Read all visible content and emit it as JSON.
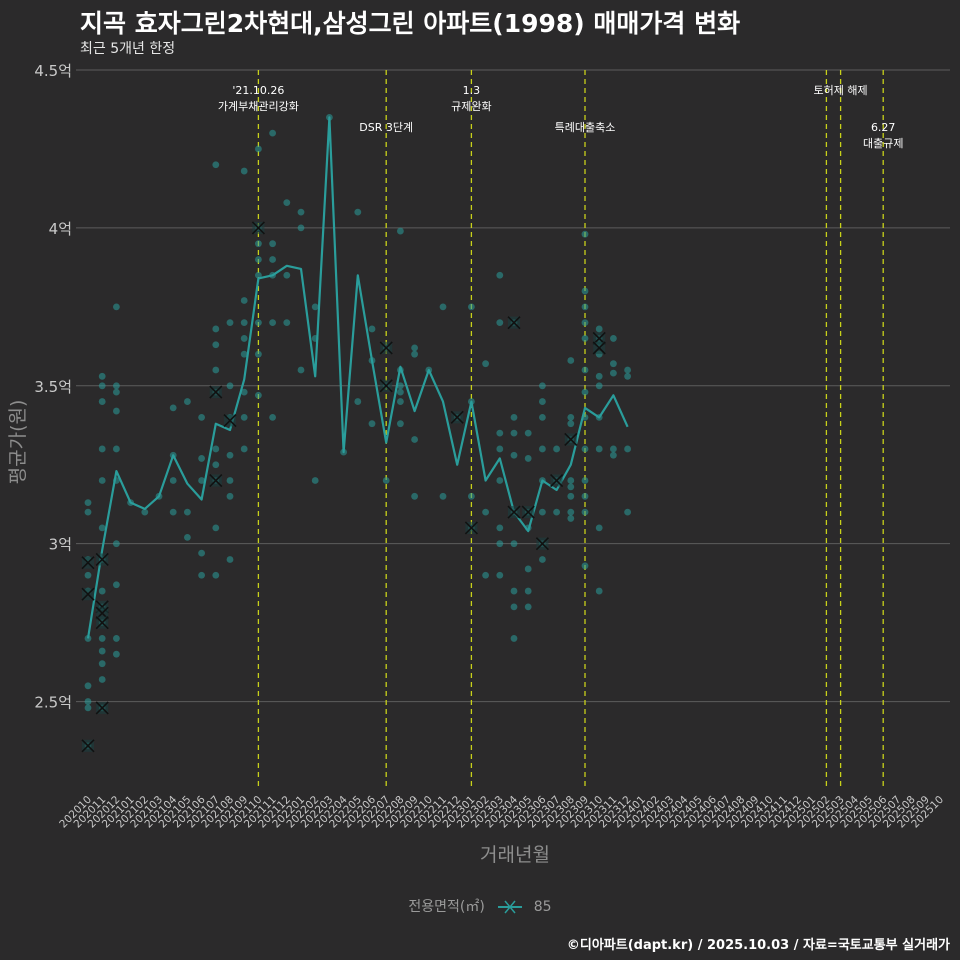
{
  "header": {
    "title": "지곡 효자그린2차현대,삼성그린 아파트(1998) 매매가격 변화",
    "subtitle": "최근 5개년 한정"
  },
  "caption": "©디아파트(dapt.kr) / 2025.10.03 / 자료=국토교통부 실거래가",
  "legend": {
    "title": "전용면적(㎡)",
    "label": "85"
  },
  "colors": {
    "series": "#2a9d9b",
    "vline": "#c8d11a",
    "grid": "#5c5c5c",
    "background": "#2b2a2b"
  },
  "chart_data": {
    "type": "line",
    "title": "지곡 효자그린2차현대,삼성그린 아파트(1998) 매매가격 변화",
    "subtitle": "최근 5개년 한정",
    "xlabel": "거래년월",
    "ylabel": "평균가(원)",
    "ylim": [
      2.22,
      4.5
    ],
    "yticks": [
      {
        "value": 2.5,
        "label": "2.5억"
      },
      {
        "value": 3.0,
        "label": "3억"
      },
      {
        "value": 3.5,
        "label": "3.5억"
      },
      {
        "value": 4.0,
        "label": "4억"
      },
      {
        "value": 4.5,
        "label": "4.5억"
      }
    ],
    "grid": true,
    "legend_position": "bottom",
    "x_categories": [
      "202010",
      "202011",
      "202012",
      "202101",
      "202102",
      "202103",
      "202104",
      "202105",
      "202106",
      "202107",
      "202108",
      "202109",
      "202110",
      "202111",
      "202112",
      "202201",
      "202202",
      "202203",
      "202204",
      "202205",
      "202206",
      "202207",
      "202208",
      "202209",
      "202210",
      "202211",
      "202212",
      "202301",
      "202302",
      "202303",
      "202304",
      "202305",
      "202306",
      "202307",
      "202308",
      "202309",
      "202310",
      "202311",
      "202312",
      "202401",
      "202402",
      "202403",
      "202404",
      "202405",
      "202406",
      "202407",
      "202408",
      "202409",
      "202410",
      "202411",
      "202412",
      "202501",
      "202502",
      "202503",
      "202504",
      "202505",
      "202506",
      "202507",
      "202508",
      "202509",
      "202510"
    ],
    "series": [
      {
        "name": "85",
        "x": [
          "202010",
          "202011",
          "202012",
          "202101",
          "202102",
          "202103",
          "202104",
          "202105",
          "202106",
          "202107",
          "202108",
          "202109",
          "202110",
          "202111",
          "202112",
          "202201",
          "202202",
          "202203",
          "202204",
          "202205",
          "202206",
          "202207",
          "202208",
          "202209",
          "202210",
          "202211",
          "202212",
          "202301",
          "202302",
          "202303",
          "202304",
          "202305",
          "202306",
          "202307",
          "202308",
          "202309",
          "202310",
          "202311",
          "202312"
        ],
        "values": [
          2.7,
          2.98,
          3.23,
          3.13,
          3.11,
          3.15,
          3.28,
          3.19,
          3.14,
          3.38,
          3.36,
          3.52,
          3.84,
          3.85,
          3.88,
          3.87,
          3.53,
          4.35,
          3.29,
          3.85,
          3.58,
          3.32,
          3.56,
          3.42,
          3.55,
          3.45,
          3.25,
          3.45,
          3.2,
          3.27,
          3.1,
          3.04,
          3.2,
          3.17,
          3.25,
          3.43,
          3.4,
          3.47,
          3.37
        ]
      }
    ],
    "scatter_points": [
      [
        "202010",
        2.7
      ],
      [
        "202010",
        2.9
      ],
      [
        "202010",
        2.95
      ],
      [
        "202010",
        3.1
      ],
      [
        "202010",
        3.13
      ],
      [
        "202010",
        2.85
      ],
      [
        "202010",
        2.55
      ],
      [
        "202010",
        2.5
      ],
      [
        "202010",
        2.48
      ],
      [
        "202010",
        2.36
      ],
      [
        "202011",
        2.62
      ],
      [
        "202011",
        2.7
      ],
      [
        "202011",
        2.8
      ],
      [
        "202011",
        2.85
      ],
      [
        "202011",
        2.95
      ],
      [
        "202011",
        3.05
      ],
      [
        "202011",
        3.2
      ],
      [
        "202011",
        3.3
      ],
      [
        "202011",
        3.45
      ],
      [
        "202011",
        3.5
      ],
      [
        "202011",
        3.53
      ],
      [
        "202011",
        2.57
      ],
      [
        "202011",
        2.48
      ],
      [
        "202011",
        2.75
      ],
      [
        "202011",
        2.66
      ],
      [
        "202012",
        2.65
      ],
      [
        "202012",
        2.7
      ],
      [
        "202012",
        2.87
      ],
      [
        "202012",
        3.0
      ],
      [
        "202012",
        3.2
      ],
      [
        "202012",
        3.3
      ],
      [
        "202012",
        3.42
      ],
      [
        "202012",
        3.48
      ],
      [
        "202012",
        3.5
      ],
      [
        "202012",
        3.75
      ],
      [
        "202101",
        3.13
      ],
      [
        "202102",
        3.1
      ],
      [
        "202103",
        3.15
      ],
      [
        "202104",
        3.1
      ],
      [
        "202104",
        3.2
      ],
      [
        "202104",
        3.28
      ],
      [
        "202104",
        3.43
      ],
      [
        "202105",
        3.02
      ],
      [
        "202105",
        3.1
      ],
      [
        "202105",
        3.45
      ],
      [
        "202106",
        2.9
      ],
      [
        "202106",
        2.97
      ],
      [
        "202106",
        3.2
      ],
      [
        "202106",
        3.27
      ],
      [
        "202106",
        3.4
      ],
      [
        "202107",
        2.9
      ],
      [
        "202107",
        3.05
      ],
      [
        "202107",
        3.2
      ],
      [
        "202107",
        3.25
      ],
      [
        "202107",
        3.3
      ],
      [
        "202107",
        3.48
      ],
      [
        "202107",
        3.55
      ],
      [
        "202107",
        3.63
      ],
      [
        "202107",
        3.68
      ],
      [
        "202107",
        4.2
      ],
      [
        "202108",
        2.95
      ],
      [
        "202108",
        3.15
      ],
      [
        "202108",
        3.2
      ],
      [
        "202108",
        3.28
      ],
      [
        "202108",
        3.4
      ],
      [
        "202108",
        3.5
      ],
      [
        "202108",
        3.7
      ],
      [
        "202109",
        3.3
      ],
      [
        "202109",
        3.4
      ],
      [
        "202109",
        3.48
      ],
      [
        "202109",
        3.6
      ],
      [
        "202109",
        3.65
      ],
      [
        "202109",
        3.7
      ],
      [
        "202109",
        3.77
      ],
      [
        "202109",
        4.18
      ],
      [
        "202110",
        3.47
      ],
      [
        "202110",
        3.6
      ],
      [
        "202110",
        3.7
      ],
      [
        "202110",
        3.85
      ],
      [
        "202110",
        3.9
      ],
      [
        "202110",
        3.95
      ],
      [
        "202110",
        4.0
      ],
      [
        "202110",
        4.25
      ],
      [
        "202111",
        3.4
      ],
      [
        "202111",
        3.7
      ],
      [
        "202111",
        3.85
      ],
      [
        "202111",
        3.9
      ],
      [
        "202111",
        3.95
      ],
      [
        "202111",
        4.3
      ],
      [
        "202112",
        3.7
      ],
      [
        "202112",
        3.85
      ],
      [
        "202112",
        4.08
      ],
      [
        "202201",
        3.55
      ],
      [
        "202201",
        4.0
      ],
      [
        "202201",
        4.05
      ],
      [
        "202202",
        3.2
      ],
      [
        "202202",
        3.65
      ],
      [
        "202202",
        3.75
      ],
      [
        "202203",
        4.35
      ],
      [
        "202204",
        3.29
      ],
      [
        "202205",
        3.45
      ],
      [
        "202205",
        4.05
      ],
      [
        "202206",
        3.38
      ],
      [
        "202206",
        3.58
      ],
      [
        "202206",
        3.68
      ],
      [
        "202207",
        3.2
      ],
      [
        "202207",
        3.5
      ],
      [
        "202207",
        3.62
      ],
      [
        "202208",
        3.38
      ],
      [
        "202208",
        3.45
      ],
      [
        "202208",
        3.48
      ],
      [
        "202208",
        3.5
      ],
      [
        "202208",
        3.55
      ],
      [
        "202208",
        3.99
      ],
      [
        "202209",
        3.15
      ],
      [
        "202209",
        3.33
      ],
      [
        "202209",
        3.6
      ],
      [
        "202209",
        3.62
      ],
      [
        "202210",
        3.55
      ],
      [
        "202211",
        3.15
      ],
      [
        "202211",
        3.75
      ],
      [
        "202212",
        3.4
      ],
      [
        "202301",
        3.05
      ],
      [
        "202301",
        3.15
      ],
      [
        "202301",
        3.45
      ],
      [
        "202301",
        3.75
      ],
      [
        "202302",
        2.9
      ],
      [
        "202302",
        3.1
      ],
      [
        "202302",
        3.57
      ],
      [
        "202303",
        2.9
      ],
      [
        "202303",
        3.0
      ],
      [
        "202303",
        3.05
      ],
      [
        "202303",
        3.2
      ],
      [
        "202303",
        3.3
      ],
      [
        "202303",
        3.35
      ],
      [
        "202303",
        3.7
      ],
      [
        "202303",
        3.85
      ],
      [
        "202304",
        2.7
      ],
      [
        "202304",
        2.8
      ],
      [
        "202304",
        2.85
      ],
      [
        "202304",
        3.0
      ],
      [
        "202304",
        3.1
      ],
      [
        "202304",
        3.28
      ],
      [
        "202304",
        3.35
      ],
      [
        "202304",
        3.4
      ],
      [
        "202304",
        3.7
      ],
      [
        "202305",
        2.8
      ],
      [
        "202305",
        2.85
      ],
      [
        "202305",
        2.92
      ],
      [
        "202305",
        3.05
      ],
      [
        "202305",
        3.1
      ],
      [
        "202305",
        3.27
      ],
      [
        "202305",
        3.35
      ],
      [
        "202306",
        2.95
      ],
      [
        "202306",
        3.0
      ],
      [
        "202306",
        3.1
      ],
      [
        "202306",
        3.2
      ],
      [
        "202306",
        3.3
      ],
      [
        "202306",
        3.4
      ],
      [
        "202306",
        3.45
      ],
      [
        "202306",
        3.5
      ],
      [
        "202307",
        3.1
      ],
      [
        "202307",
        3.2
      ],
      [
        "202307",
        3.3
      ],
      [
        "202308",
        3.08
      ],
      [
        "202308",
        3.1
      ],
      [
        "202308",
        3.15
      ],
      [
        "202308",
        3.18
      ],
      [
        "202308",
        3.2
      ],
      [
        "202308",
        3.33
      ],
      [
        "202308",
        3.38
      ],
      [
        "202308",
        3.4
      ],
      [
        "202308",
        3.58
      ],
      [
        "202309",
        2.93
      ],
      [
        "202309",
        3.1
      ],
      [
        "202309",
        3.15
      ],
      [
        "202309",
        3.2
      ],
      [
        "202309",
        3.3
      ],
      [
        "202309",
        3.4
      ],
      [
        "202309",
        3.48
      ],
      [
        "202309",
        3.55
      ],
      [
        "202309",
        3.65
      ],
      [
        "202309",
        3.7
      ],
      [
        "202309",
        3.75
      ],
      [
        "202309",
        3.8
      ],
      [
        "202309",
        3.98
      ],
      [
        "202310",
        2.85
      ],
      [
        "202310",
        3.05
      ],
      [
        "202310",
        3.3
      ],
      [
        "202310",
        3.4
      ],
      [
        "202310",
        3.5
      ],
      [
        "202310",
        3.53
      ],
      [
        "202310",
        3.6
      ],
      [
        "202310",
        3.63
      ],
      [
        "202310",
        3.65
      ],
      [
        "202310",
        3.68
      ],
      [
        "202311",
        3.28
      ],
      [
        "202311",
        3.3
      ],
      [
        "202311",
        3.54
      ],
      [
        "202311",
        3.57
      ],
      [
        "202311",
        3.65
      ],
      [
        "202312",
        3.1
      ],
      [
        "202312",
        3.3
      ],
      [
        "202312",
        3.53
      ],
      [
        "202312",
        3.55
      ]
    ],
    "x_markers": [
      [
        "202010",
        2.94
      ],
      [
        "202010",
        2.84
      ],
      [
        "202010",
        2.36
      ],
      [
        "202011",
        2.95
      ],
      [
        "202011",
        2.8
      ],
      [
        "202011",
        2.78
      ],
      [
        "202011",
        2.75
      ],
      [
        "202011",
        2.48
      ],
      [
        "202107",
        3.48
      ],
      [
        "202107",
        3.2
      ],
      [
        "202108",
        3.39
      ],
      [
        "202110",
        4.0
      ],
      [
        "202207",
        3.62
      ],
      [
        "202207",
        3.5
      ],
      [
        "202212",
        3.4
      ],
      [
        "202301",
        3.05
      ],
      [
        "202304",
        3.7
      ],
      [
        "202304",
        3.1
      ],
      [
        "202305",
        3.1
      ],
      [
        "202306",
        3.0
      ],
      [
        "202307",
        3.2
      ],
      [
        "202308",
        3.33
      ],
      [
        "202310",
        3.65
      ],
      [
        "202310",
        3.62
      ]
    ],
    "annotations": [
      {
        "x": "202110",
        "lines": [
          "'21.10.26",
          "가계부채관리강화"
        ],
        "level": 0
      },
      {
        "x": "202207",
        "lines": [
          "DSR 3단계"
        ],
        "level": 1
      },
      {
        "x": "202301",
        "lines": [
          "1.3",
          "규제완화"
        ],
        "level": 0
      },
      {
        "x": "202309",
        "lines": [
          "특례대출축소"
        ],
        "level": 1
      },
      {
        "x": "202502",
        "lines": [],
        "level": 0
      },
      {
        "x": "202503",
        "lines": [
          "토허제 해제"
        ],
        "level": 0
      },
      {
        "x": "202506",
        "lines": [
          "6.27",
          "대출규제"
        ],
        "level": 1
      }
    ]
  }
}
